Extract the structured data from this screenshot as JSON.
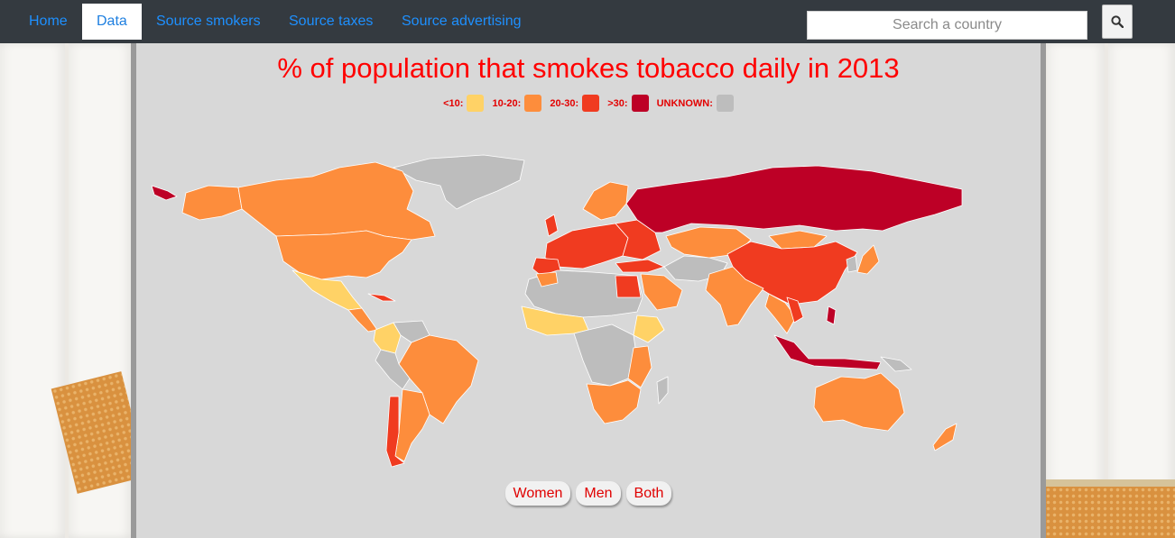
{
  "nav": {
    "items": [
      {
        "label": "Home",
        "active": false
      },
      {
        "label": "Data",
        "active": true
      },
      {
        "label": "Source smokers",
        "active": false
      },
      {
        "label": "Source taxes",
        "active": false
      },
      {
        "label": "Source advertising",
        "active": false
      }
    ]
  },
  "search": {
    "placeholder": "Search a country",
    "value": "",
    "icon": "search-icon"
  },
  "map": {
    "title": "% of population that smokes tobacco daily in 2013",
    "legend": [
      {
        "label": "<10:",
        "color": "#ffd266"
      },
      {
        "label": "10-20:",
        "color": "#fd8d3c"
      },
      {
        "label": "20-30:",
        "color": "#f03b20"
      },
      {
        "label": ">30:",
        "color": "#bd0026"
      },
      {
        "label": "UNKNOWN:",
        "color": "#bdbdbd"
      }
    ]
  },
  "buttons": {
    "women": "Women",
    "men": "Men",
    "both": "Both"
  }
}
